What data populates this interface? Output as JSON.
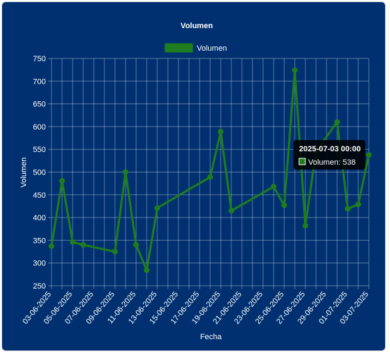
{
  "chart_data": {
    "type": "line",
    "title": "Volumen",
    "xlabel": "Fecha",
    "ylabel": "Volumen",
    "ylim": [
      250,
      750
    ],
    "yticks": [
      250,
      300,
      350,
      400,
      450,
      500,
      550,
      600,
      650,
      700,
      750
    ],
    "legend_position": "top",
    "grid": true,
    "line_color": "#1e7d1e",
    "x_tick_labels": [
      "03-06-2025",
      "05-06-2025",
      "07-06-2025",
      "09-06-2025",
      "11-06-2025",
      "13-06-2025",
      "15-06-2025",
      "17-06-2025",
      "19-06-2025",
      "21-06-2025",
      "23-06-2025",
      "25-06-2025",
      "27-06-2025",
      "29-06-2025",
      "01-07-2025",
      "03-07-2025"
    ],
    "series": [
      {
        "name": "Volumen",
        "points": [
          {
            "x": "2025-06-03",
            "y": 337
          },
          {
            "x": "2025-06-04",
            "y": 481
          },
          {
            "x": "2025-06-05",
            "y": 346
          },
          {
            "x": "2025-06-06",
            "y": 340
          },
          {
            "x": "2025-06-09",
            "y": 325
          },
          {
            "x": "2025-06-10",
            "y": 500
          },
          {
            "x": "2025-06-11",
            "y": 340
          },
          {
            "x": "2025-06-12",
            "y": 284
          },
          {
            "x": "2025-06-13",
            "y": 421
          },
          {
            "x": "2025-06-18",
            "y": 489
          },
          {
            "x": "2025-06-19",
            "y": 589
          },
          {
            "x": "2025-06-20",
            "y": 415
          },
          {
            "x": "2025-06-24",
            "y": 468
          },
          {
            "x": "2025-06-25",
            "y": 427
          },
          {
            "x": "2025-06-26",
            "y": 724
          },
          {
            "x": "2025-06-27",
            "y": 382
          },
          {
            "x": "2025-06-28",
            "y": 545
          },
          {
            "x": "2025-06-30",
            "y": 610
          },
          {
            "x": "2025-07-01",
            "y": 419
          },
          {
            "x": "2025-07-02",
            "y": 429
          },
          {
            "x": "2025-07-03",
            "y": 538
          }
        ]
      }
    ],
    "tooltip": {
      "title": "2025-07-03 00:00",
      "label": "Volumen: 538"
    }
  }
}
